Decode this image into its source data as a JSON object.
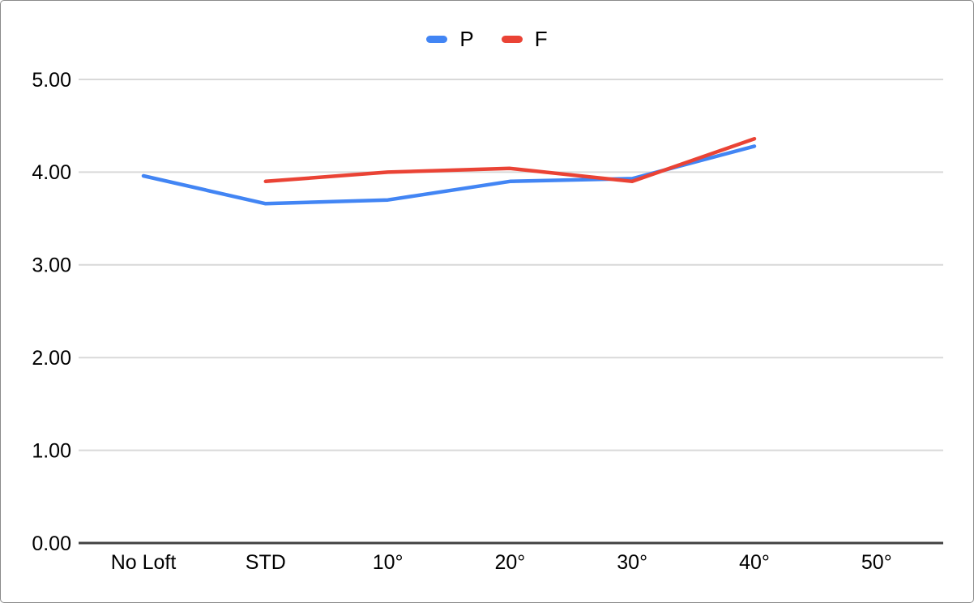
{
  "chart_data": {
    "type": "line",
    "title": "",
    "xlabel": "",
    "ylabel": "",
    "categories": [
      "No Loft",
      "STD",
      "10°",
      "20°",
      "30°",
      "40°",
      "50°"
    ],
    "series": [
      {
        "name": "P",
        "color": "#4285F4",
        "values": [
          3.96,
          3.66,
          3.7,
          3.9,
          3.93,
          4.28,
          null
        ]
      },
      {
        "name": "F",
        "color": "#EA4335",
        "values": [
          null,
          3.9,
          4.0,
          4.04,
          3.9,
          4.36,
          null
        ]
      }
    ],
    "ylim": [
      0,
      5
    ],
    "y_ticks": [
      "0.00",
      "1.00",
      "2.00",
      "3.00",
      "4.00",
      "5.00"
    ],
    "grid": true,
    "legend_position": "top-center",
    "colors": {
      "gridline": "#d9d9d9",
      "axis_line": "#424242",
      "tick_label": "#000000",
      "background": "#ffffff",
      "frame_border": "#8a8a8a"
    }
  }
}
